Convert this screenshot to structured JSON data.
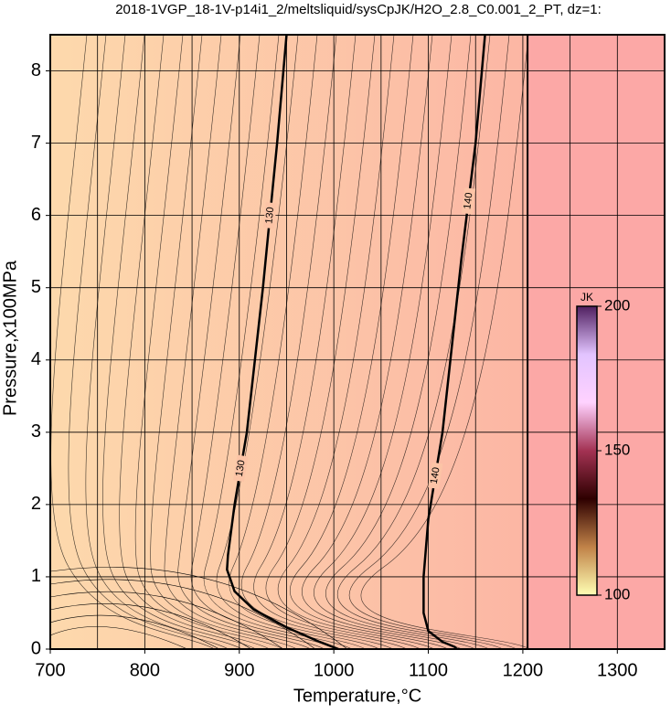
{
  "chart_data": {
    "type": "contour",
    "title": "2018-1VGP_18-1V-p14i1_2/meltsliquid/sysCpJK/H2O_2.8_C0.001_2_PT, dz=1:",
    "x_label": "Temperature,°C",
    "y_label": "Pressure,x100MPa",
    "xlim": [
      700,
      1350
    ],
    "ylim": [
      0,
      8.5
    ],
    "xticks": [
      700,
      800,
      900,
      1000,
      1100,
      1200,
      1300
    ],
    "yticks": [
      0,
      1,
      2,
      3,
      4,
      5,
      6,
      7,
      8
    ],
    "xgrid": [
      750,
      850,
      950,
      1050,
      1150,
      1250,
      1350
    ],
    "grid": true,
    "background_colors": [
      "#fdd9ac",
      "#fcaca2"
    ],
    "boundary": 1205,
    "region_color": "#fca8a6",
    "series": [
      {
        "level": 130,
        "color": "#000000",
        "x": [
          950,
          940,
          925,
          908,
          895,
          888,
          887,
          895,
          915,
          950,
          985,
          1005
        ],
        "values": [
          8.5,
          7,
          5,
          3,
          2,
          1.3,
          1.1,
          0.8,
          0.55,
          0.3,
          0.1,
          0
        ]
      },
      {
        "level": 140,
        "color": "#000000",
        "x": [
          1160,
          1150,
          1135,
          1115,
          1100,
          1095,
          1095,
          1100,
          1115,
          1128,
          1130
        ],
        "values": [
          8.5,
          7,
          5.4,
          3,
          1.8,
          1,
          0.5,
          0.25,
          0.1,
          0.03,
          0
        ]
      }
    ],
    "colorbar": {
      "label": "JK",
      "lim": [
        100,
        200
      ],
      "ticks": [
        100,
        150,
        200
      ],
      "colors": [
        "#ffffb4",
        "#c08248",
        "#2e0000",
        "#a33253",
        "#ffd2ff",
        "#e2c4ff",
        "#502060"
      ]
    }
  }
}
